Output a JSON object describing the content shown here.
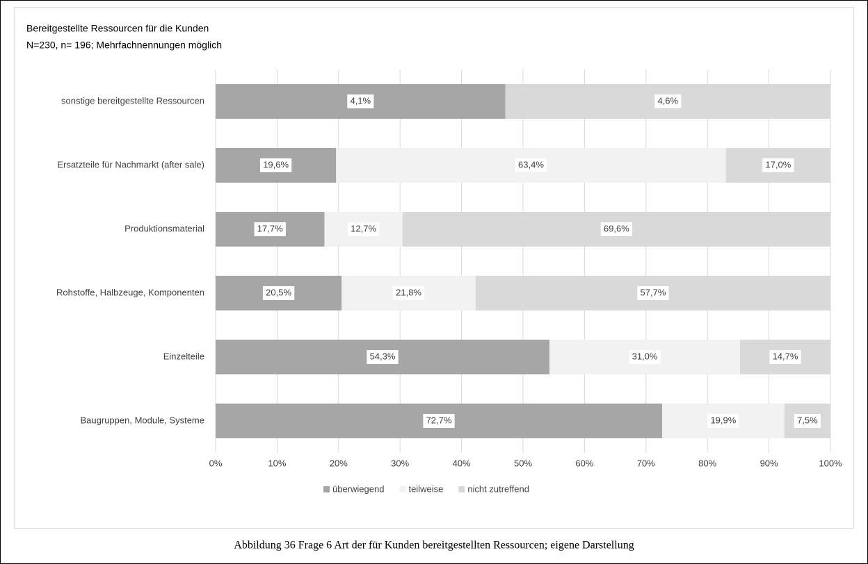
{
  "chart_data": {
    "type": "bar",
    "orientation": "horizontal",
    "stacking": "percent",
    "title": "Bereitgestellte Ressourcen für die Kunden",
    "subtitle": "N=230, n= 196; Mehrfachnennungen möglich",
    "categories": [
      "sonstige bereitgestellte Ressourcen",
      "Ersatzteile für Nachmarkt (after sale)",
      "Produktionsmaterial",
      "Rohstoffe, Halbzeuge, Komponenten",
      "Einzelteile",
      "Baugruppen, Module, Systeme"
    ],
    "series": [
      {
        "name": "überwiegend",
        "color": "#a6a6a6",
        "values": [
          4.1,
          19.6,
          17.7,
          20.5,
          54.3,
          72.7
        ],
        "value_labels": [
          "4,1%",
          "19,6%",
          "17,7%",
          "20,5%",
          "54,3%",
          "72,7%"
        ]
      },
      {
        "name": "teilweise",
        "color": "#f2f2f2",
        "values": [
          null,
          63.4,
          12.7,
          21.8,
          31.0,
          19.9
        ],
        "value_labels": [
          null,
          "63,4%",
          "12,7%",
          "21,8%",
          "31,0%",
          "19,9%"
        ]
      },
      {
        "name": "nicht zutreffend",
        "color": "#d9d9d9",
        "values": [
          4.6,
          17.0,
          69.6,
          57.7,
          14.7,
          7.5
        ],
        "value_labels": [
          "4,6%",
          "17,0%",
          "69,6%",
          "57,7%",
          "14,7%",
          "7,5%"
        ]
      }
    ],
    "xlim": [
      0,
      100
    ],
    "xticks": [
      {
        "value": 0,
        "label": "0%"
      },
      {
        "value": 10,
        "label": "10%"
      },
      {
        "value": 20,
        "label": "20%"
      },
      {
        "value": 30,
        "label": "30%"
      },
      {
        "value": 40,
        "label": "40%"
      },
      {
        "value": 50,
        "label": "50%"
      },
      {
        "value": 60,
        "label": "60%"
      },
      {
        "value": 70,
        "label": "70%"
      },
      {
        "value": 80,
        "label": "80%"
      },
      {
        "value": 90,
        "label": "90%"
      },
      {
        "value": 100,
        "label": "100%"
      }
    ],
    "grid": true,
    "legend": "bottom"
  },
  "caption": "Abbildung 36 Frage 6 Art der für Kunden bereitgestellten Ressourcen; eigene Darstellung"
}
